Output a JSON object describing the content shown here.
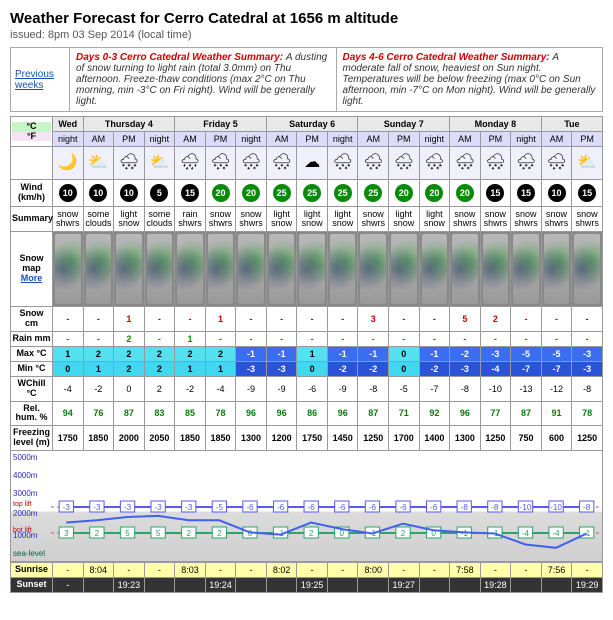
{
  "header": {
    "title": "Weather Forecast for Cerro Catedral at 1656 m altitude",
    "issued": "issued: 8pm 03 Sep 2014 (local time)"
  },
  "summaries": {
    "prev_link": "Previous weeks",
    "left_label": "Days 0-3 Cerro Catedral Weather Summary:",
    "left_text": "A dusting of snow turning to light rain (total 3.0mm) on Thu afternoon. Freeze-thaw conditions (max 2°C on Thu morning, min -3°C on Fri night). Wind will be generally light.",
    "right_label": "Days 4-6 Cerro Catedral Weather Summary:",
    "right_text": "A moderate fall of snow, heaviest on Sun night. Temperatures will be below freezing (max 0°C on Sun afternoon, min -7°C on Mon night). Wind will be generally light."
  },
  "units": {
    "c": "°C",
    "f": "°F"
  },
  "days": [
    {
      "name": "Wed",
      "periods": [
        "night"
      ]
    },
    {
      "name": "Thursday 4",
      "periods": [
        "AM",
        "PM",
        "night"
      ]
    },
    {
      "name": "Friday 5",
      "periods": [
        "AM",
        "PM",
        "night"
      ]
    },
    {
      "name": "Saturday 6",
      "periods": [
        "AM",
        "PM",
        "night"
      ]
    },
    {
      "name": "Sunday 7",
      "periods": [
        "AM",
        "PM",
        "night"
      ]
    },
    {
      "name": "Monday 8",
      "periods": [
        "AM",
        "PM",
        "night"
      ]
    },
    {
      "name": "Tue",
      "periods": [
        "AM",
        "PM"
      ]
    }
  ],
  "row_labels": {
    "wind": "Wind (km/h)",
    "summary": "Summary",
    "snowmap": "Snow map",
    "snowmap_more": "More",
    "snowcm": "Snow cm",
    "rainmm": "Rain mm",
    "maxc": "Max °C",
    "minc": "Min °C",
    "wchill": "WChill °C",
    "rh": "Rel. hum. %",
    "fl": "Freezing level (m)",
    "sunrise": "Sunrise",
    "sunset": "Sunset"
  },
  "columns": [
    {
      "wx": "🌙",
      "wind": 10,
      "wc": "black",
      "sum": "snow shwrs",
      "snow": "-",
      "rain": "-",
      "max": 1,
      "min": 0,
      "chill": -4,
      "rh": 94,
      "fl": 1750
    },
    {
      "wx": "⛅",
      "wind": 10,
      "wc": "black",
      "sum": "some clouds",
      "snow": "-",
      "rain": "-",
      "max": 2,
      "min": 1,
      "chill": -2,
      "rh": 76,
      "fl": 1850
    },
    {
      "wx": "🌨",
      "wind": 10,
      "wc": "black",
      "sum": "light snow",
      "snow": 1,
      "rain": 2,
      "max": 2,
      "min": 2,
      "chill": 0,
      "rh": 87,
      "fl": 2000
    },
    {
      "wx": "⛅",
      "wind": 5,
      "wc": "black",
      "sum": "some clouds",
      "snow": "-",
      "rain": "-",
      "max": 2,
      "min": 2,
      "chill": 2,
      "rh": 83,
      "fl": 2050
    },
    {
      "wx": "🌧",
      "wind": 15,
      "wc": "black",
      "sum": "rain shwrs",
      "snow": "-",
      "rain": 1,
      "max": 2,
      "min": 1,
      "chill": -2,
      "rh": 85,
      "fl": 1850
    },
    {
      "wx": "🌨",
      "wind": 20,
      "wc": "green",
      "sum": "snow shwrs",
      "snow": 1,
      "rain": "-",
      "max": 2,
      "min": 1,
      "chill": -4,
      "rh": 78,
      "fl": 1850
    },
    {
      "wx": "🌨",
      "wind": 20,
      "wc": "green",
      "sum": "snow shwrs",
      "snow": "-",
      "rain": "-",
      "max": -1,
      "min": -3,
      "chill": -9,
      "rh": 96,
      "fl": 1300
    },
    {
      "wx": "🌨",
      "wind": 25,
      "wc": "green",
      "sum": "light snow",
      "snow": "-",
      "rain": "-",
      "max": -1,
      "min": -3,
      "chill": -9,
      "rh": 96,
      "fl": 1200
    },
    {
      "wx": "☁",
      "wind": 25,
      "wc": "green",
      "sum": "light snow",
      "snow": "-",
      "rain": "-",
      "max": 1,
      "min": 0,
      "chill": -6,
      "rh": 86,
      "fl": 1750
    },
    {
      "wx": "🌨",
      "wind": 25,
      "wc": "green",
      "sum": "light snow",
      "snow": "-",
      "rain": "-",
      "max": -1,
      "min": -2,
      "chill": -9,
      "rh": 96,
      "fl": 1450
    },
    {
      "wx": "🌨",
      "wind": 25,
      "wc": "green",
      "sum": "snow shwrs",
      "snow": 3,
      "rain": "-",
      "max": -1,
      "min": -2,
      "chill": -8,
      "rh": 87,
      "fl": 1250
    },
    {
      "wx": "🌨",
      "wind": 20,
      "wc": "green",
      "sum": "light snow",
      "snow": "-",
      "rain": "-",
      "max": 0,
      "min": 0,
      "chill": -5,
      "rh": 71,
      "fl": 1700
    },
    {
      "wx": "🌨",
      "wind": 20,
      "wc": "green",
      "sum": "light snow",
      "snow": "-",
      "rain": "-",
      "max": -1,
      "min": -2,
      "chill": -7,
      "rh": 92,
      "fl": 1400
    },
    {
      "wx": "🌨",
      "wind": 20,
      "wc": "green",
      "sum": "snow shwrs",
      "snow": 5,
      "rain": "-",
      "max": -2,
      "min": -3,
      "chill": -8,
      "rh": 96,
      "fl": 1300
    },
    {
      "wx": "🌨",
      "wind": 15,
      "wc": "black",
      "sum": "snow shwrs",
      "snow": 2,
      "rain": "-",
      "max": -3,
      "min": -4,
      "chill": -10,
      "rh": 77,
      "fl": 1250
    },
    {
      "wx": "🌨",
      "wind": 15,
      "wc": "black",
      "sum": "snow shwrs",
      "snow": "-",
      "rain": "-",
      "max": -5,
      "min": -7,
      "chill": -13,
      "rh": 87,
      "fl": 750
    },
    {
      "wx": "🌨",
      "wind": 10,
      "wc": "black",
      "sum": "snow shwrs",
      "snow": "-",
      "rain": "-",
      "max": -5,
      "min": -7,
      "chill": -12,
      "rh": 91,
      "fl": 600
    },
    {
      "wx": "⛅",
      "wind": 15,
      "wc": "black",
      "sum": "snow shwrs",
      "snow": "-",
      "rain": "-",
      "max": -3,
      "min": -3,
      "chill": -8,
      "rh": 78,
      "fl": 1250
    }
  ],
  "sunrise": [
    "-",
    "8:04",
    "-",
    "-",
    "8:03",
    "-",
    "-",
    "8:02",
    "-",
    "-",
    "8:00",
    "-",
    "-",
    "7:58",
    "-",
    "-",
    "7:56",
    "-"
  ],
  "sunset": [
    "-",
    "",
    "19:23",
    "",
    "",
    "19:24",
    "",
    "",
    "19:25",
    "",
    "",
    "19:27",
    "",
    "",
    "19:28",
    "",
    "",
    "19:29"
  ],
  "chart": {
    "ylabels": {
      "y5000": "5000m",
      "y4000": "4000m",
      "y3000": "3000m",
      "y2000": "2000m",
      "y1000": "1000m",
      "sea": "sea-level"
    },
    "toplift": "top lift",
    "botlift": "bot lift",
    "top_vals": [
      -3,
      -3,
      -3,
      -3,
      -3,
      -5,
      -6,
      -6,
      -6,
      -6,
      -6,
      -6,
      -6,
      -8,
      -8,
      -10,
      -10,
      -8
    ],
    "bot_vals": [
      3,
      2,
      5,
      5,
      2,
      2,
      0,
      -1,
      2,
      0,
      -1,
      2,
      0,
      -1,
      -1,
      -4,
      -4,
      -1
    ]
  }
}
